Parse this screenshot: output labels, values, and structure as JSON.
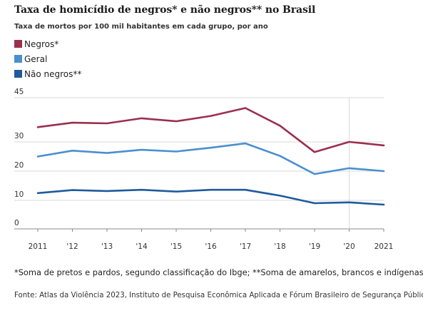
{
  "title": "Taxa de homicídio de negros* e não negros** no Brasil",
  "subtitle": "Taxa de mortos por 100 mil habitantes em cada grupo, por ano",
  "footnote": "*Soma de pretos e pardos, segundo classificação do Ibge; **Soma de amarelos, brancos e indígenas",
  "source": "Fonte: Atlas da Violência 2023, Instituto de Pesquisa Econômica Aplicada e Fórum Brasileiro de Segurança Pública",
  "colors": {
    "negros": "#9b2f4e",
    "geral": "#4a8fd0",
    "nao_negros": "#1f5a9e",
    "grid": "#d9d9d9",
    "axis": "#888888"
  },
  "chart_data": {
    "type": "line",
    "title": "Taxa de homicídio de negros* e não negros** no Brasil",
    "subtitle": "Taxa de mortos por 100 mil habitantes em cada grupo, por ano",
    "categories": [
      "2011",
      "'12",
      "'13",
      "'14",
      "'15",
      "'16",
      "'17",
      "'18",
      "'19",
      "'20",
      "2021"
    ],
    "y_ticks": [
      "45",
      "30",
      "20",
      "10",
      "0"
    ],
    "ylim": [
      0,
      45
    ],
    "grid": true,
    "legend_position": "top-left",
    "series": [
      {
        "name": "Negros*",
        "color": "#9b2f4e",
        "values": [
          35.0,
          36.5,
          36.3,
          38.0,
          37.0,
          38.8,
          41.5,
          35.5,
          26.5,
          30.0,
          28.8
        ]
      },
      {
        "name": "Geral",
        "color": "#4a8fd0",
        "values": [
          25.0,
          27.0,
          26.2,
          27.3,
          26.7,
          28.0,
          29.5,
          25.2,
          19.0,
          21.0,
          20.0
        ]
      },
      {
        "name": "Não negros**",
        "color": "#1f5a9e",
        "values": [
          12.5,
          13.5,
          13.2,
          13.6,
          13.0,
          13.6,
          13.6,
          11.6,
          9.0,
          9.3,
          8.5
        ]
      }
    ]
  }
}
